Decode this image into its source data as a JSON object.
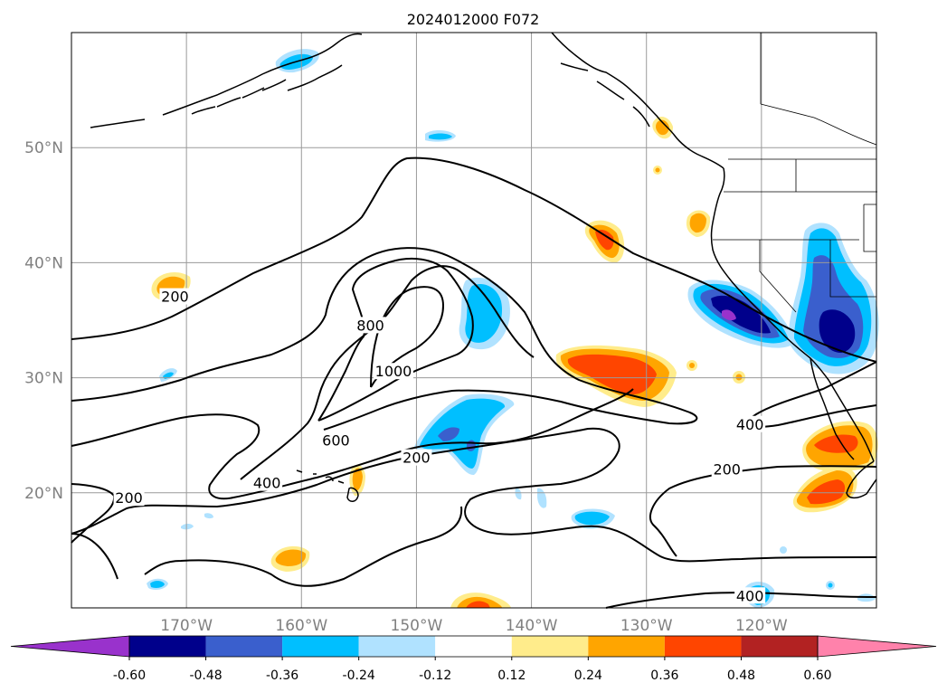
{
  "title": "2024012000 F072",
  "map": {
    "lon_range": [
      -180,
      -110
    ],
    "lat_range": [
      10,
      60
    ],
    "gridlines": true,
    "lon_ticks": [
      {
        "lon": -170,
        "label": "170°W"
      },
      {
        "lon": -160,
        "label": "160°W"
      },
      {
        "lon": -150,
        "label": "150°W"
      },
      {
        "lon": -140,
        "label": "140°W"
      },
      {
        "lon": -130,
        "label": "130°W"
      },
      {
        "lon": -120,
        "label": "120°W"
      }
    ],
    "lat_ticks": [
      {
        "lat": 20,
        "label": "20°N"
      },
      {
        "lat": 30,
        "label": "30°N"
      },
      {
        "lat": 40,
        "label": "40°N"
      },
      {
        "lat": 50,
        "label": "50°N"
      }
    ],
    "tick_label_color": "#808080",
    "contour_labels": [
      {
        "text": "200",
        "lon": -171,
        "lat": 37
      },
      {
        "text": "800",
        "lon": -154,
        "lat": 34.5
      },
      {
        "text": "1000",
        "lon": -152,
        "lat": 30.5
      },
      {
        "text": "600",
        "lon": -157,
        "lat": 24.5
      },
      {
        "text": "200",
        "lon": -150,
        "lat": 23
      },
      {
        "text": "400",
        "lon": -163,
        "lat": 20.8
      },
      {
        "text": "200",
        "lon": -175,
        "lat": 19.5
      },
      {
        "text": "400",
        "lon": -121,
        "lat": 25.9
      },
      {
        "text": "200",
        "lon": -123,
        "lat": 22
      },
      {
        "text": "400",
        "lon": -121,
        "lat": 11
      }
    ]
  },
  "colorbar": {
    "levels": [
      "-0.60",
      "-0.48",
      "-0.36",
      "-0.24",
      "-0.12",
      "0.12",
      "0.24",
      "0.36",
      "0.48",
      "0.60"
    ],
    "colors": [
      "#9932cc",
      "#00008b",
      "#3a5fcd",
      "#00bfff",
      "#b0e2ff",
      "#ffffff",
      "#ffec8b",
      "#ffa500",
      "#ff4500",
      "#b22222",
      "#ff82ab"
    ],
    "extend": "both"
  }
}
